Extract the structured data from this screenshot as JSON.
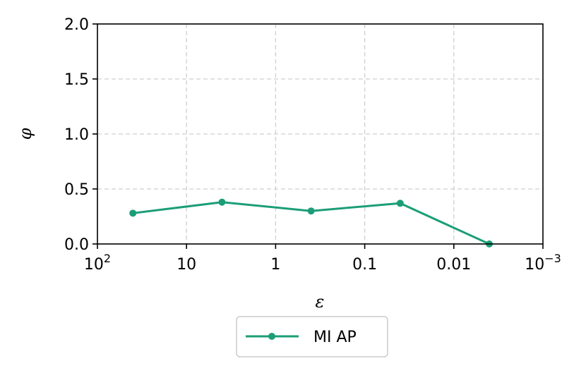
{
  "chart_data": {
    "type": "line",
    "xlabel": "ε",
    "ylabel": "φ",
    "x_scale": "log",
    "x_inverted": true,
    "xlim": [
      100,
      0.001
    ],
    "ylim": [
      0,
      2.0
    ],
    "grid": true,
    "legend_placement": "below",
    "x_ticks": [
      {
        "value": 100,
        "label": "10",
        "sup": "2"
      },
      {
        "value": 10,
        "label": "10",
        "sup": ""
      },
      {
        "value": 1,
        "label": "1",
        "sup": ""
      },
      {
        "value": 0.1,
        "label": "0.1",
        "sup": ""
      },
      {
        "value": 0.01,
        "label": "0.01",
        "sup": ""
      },
      {
        "value": 0.001,
        "label": "10",
        "sup": "−3"
      }
    ],
    "y_ticks": [
      {
        "value": 0.0,
        "label": "0.0"
      },
      {
        "value": 0.5,
        "label": "0.5"
      },
      {
        "value": 1.0,
        "label": "1.0"
      },
      {
        "value": 1.5,
        "label": "1.5"
      },
      {
        "value": 2.0,
        "label": "2.0"
      }
    ],
    "series": [
      {
        "name": "MI AP",
        "color": "#1b9e77",
        "x": [
          40,
          4,
          0.4,
          0.04,
          0.004
        ],
        "y": [
          0.28,
          0.38,
          0.3,
          0.37,
          0.0
        ]
      }
    ]
  }
}
